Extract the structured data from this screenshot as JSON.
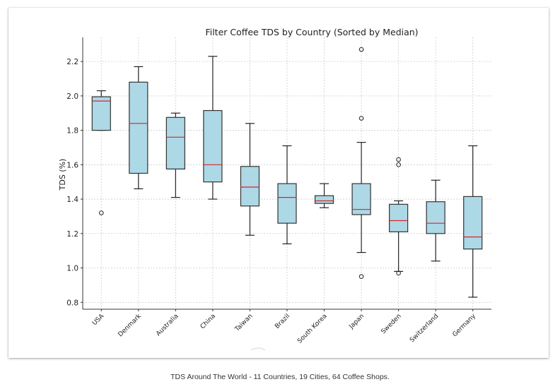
{
  "caption": "TDS Around The World - 11 Countries, 19 Cities, 64 Coffee Shops.",
  "colors": {
    "box_fill": "#add8e6",
    "median": "#d62728",
    "edge": "#333333",
    "grid": "#cccccc"
  },
  "chart_data": {
    "type": "boxplot",
    "title": "Filter Coffee TDS by Country (Sorted by Median)",
    "xlabel": "",
    "ylabel": "TDS (%)",
    "ylim": [
      0.76,
      2.34
    ],
    "yticks": [
      0.8,
      1.0,
      1.2,
      1.4,
      1.6,
      1.8,
      2.0,
      2.2
    ],
    "ytick_labels": [
      "0.8",
      "1.0",
      "1.2",
      "1.4",
      "1.6",
      "1.8",
      "2.0",
      "2.2"
    ],
    "grid": true,
    "categories": [
      "USA",
      "Denmark",
      "Australia",
      "China",
      "Taiwan",
      "Brazil",
      "South Korea",
      "Japan",
      "Sweden",
      "Switzerland",
      "Germany"
    ],
    "boxes": [
      {
        "name": "USA",
        "whislo": 1.8,
        "q1": 1.8,
        "med": 1.97,
        "q3": 1.995,
        "whishi": 2.03,
        "fliers": [
          1.32
        ]
      },
      {
        "name": "Denmark",
        "whislo": 1.46,
        "q1": 1.55,
        "med": 1.84,
        "q3": 2.08,
        "whishi": 2.17,
        "fliers": []
      },
      {
        "name": "Australia",
        "whislo": 1.41,
        "q1": 1.575,
        "med": 1.76,
        "q3": 1.875,
        "whishi": 1.9,
        "fliers": []
      },
      {
        "name": "China",
        "whislo": 1.4,
        "q1": 1.5,
        "med": 1.6,
        "q3": 1.915,
        "whishi": 2.23,
        "fliers": []
      },
      {
        "name": "Taiwan",
        "whislo": 1.19,
        "q1": 1.36,
        "med": 1.47,
        "q3": 1.59,
        "whishi": 1.84,
        "fliers": []
      },
      {
        "name": "Brazil",
        "whislo": 1.14,
        "q1": 1.26,
        "med": 1.41,
        "q3": 1.49,
        "whishi": 1.71,
        "fliers": []
      },
      {
        "name": "South Korea",
        "whislo": 1.35,
        "q1": 1.375,
        "med": 1.39,
        "q3": 1.42,
        "whishi": 1.49,
        "fliers": []
      },
      {
        "name": "Japan",
        "whislo": 1.09,
        "q1": 1.31,
        "med": 1.34,
        "q3": 1.49,
        "whishi": 1.73,
        "fliers": [
          2.27,
          1.87,
          0.95
        ]
      },
      {
        "name": "Sweden",
        "whislo": 0.98,
        "q1": 1.21,
        "med": 1.275,
        "q3": 1.37,
        "whishi": 1.39,
        "fliers": [
          1.63,
          1.6,
          0.97
        ]
      },
      {
        "name": "Switzerland",
        "whislo": 1.04,
        "q1": 1.2,
        "med": 1.26,
        "q3": 1.385,
        "whishi": 1.51,
        "fliers": []
      },
      {
        "name": "Germany",
        "whislo": 0.83,
        "q1": 1.11,
        "med": 1.18,
        "q3": 1.415,
        "whishi": 1.71,
        "fliers": []
      }
    ]
  }
}
